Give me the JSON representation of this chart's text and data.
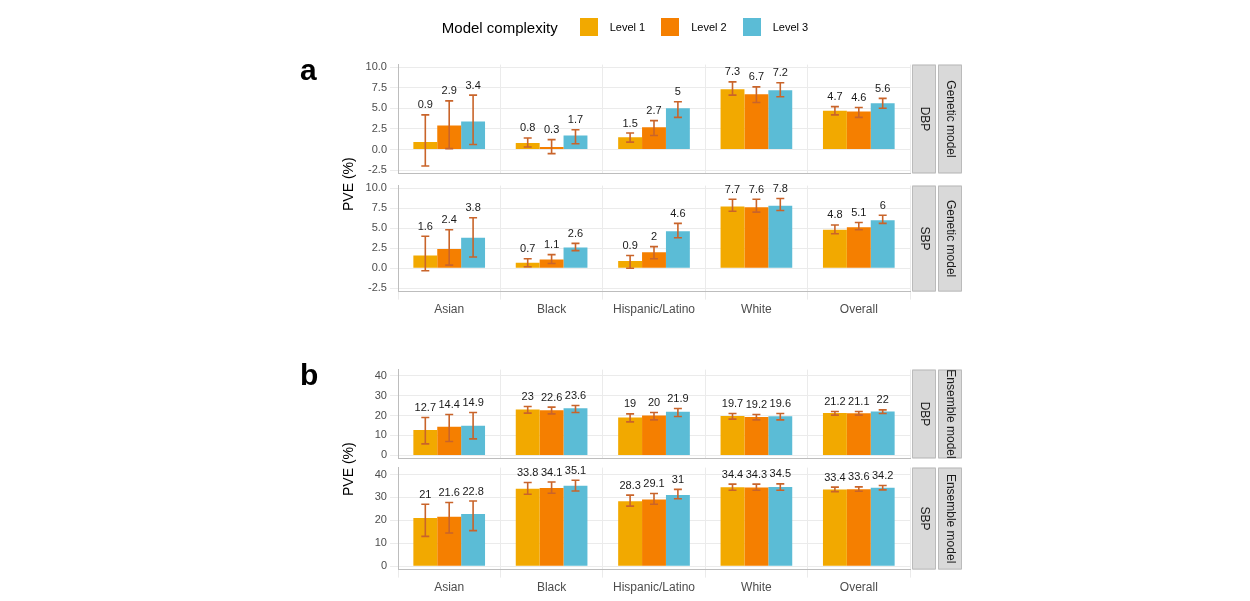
{
  "chart_data": [
    {
      "type": "bar",
      "title": "a",
      "annotations": [
        "DBP",
        "Genetic model"
      ],
      "ylabel": "PVE (%)",
      "legend_title": "Model complexity",
      "legend": "top",
      "categories": [
        "Asian",
        "Black",
        "Hispanic/Latino",
        "White",
        "Overall"
      ],
      "tick_labels": "y",
      "ylim": [
        -2.9,
        10.3
      ],
      "yticks": [
        -2.5,
        {
          "value": 0,
          "label": "0.0"
        },
        2.5,
        {
          "value": 5,
          "label": "5.0"
        },
        7.5,
        {
          "value": 10,
          "label": "10.0"
        }
      ],
      "grid": true,
      "data_labels": true,
      "series": [
        {
          "name": "Level 1",
          "color": "#f2a900",
          "values": [
            0.9,
            0.8,
            1.5,
            7.3,
            4.7
          ],
          "errors": [
            [
              -2.0,
              4.2
            ],
            [
              0.3,
              1.4
            ],
            [
              0.9,
              2.0
            ],
            [
              6.6,
              8.2
            ],
            [
              4.2,
              5.2
            ]
          ]
        },
        {
          "name": "Level 2",
          "color": "#f57f00",
          "values": [
            2.9,
            0.3,
            2.7,
            6.7,
            4.6
          ],
          "errors": [
            [
              0.1,
              5.9
            ],
            [
              -0.5,
              1.2
            ],
            [
              1.7,
              3.5
            ],
            [
              5.7,
              7.6
            ],
            [
              3.9,
              5.1
            ]
          ]
        },
        {
          "name": "Level 3",
          "color": "#5bbcd6",
          "values": [
            3.4,
            1.7,
            5,
            7.2,
            5.6
          ],
          "errors": [
            [
              0.6,
              6.6
            ],
            [
              0.7,
              2.4
            ],
            [
              3.9,
              5.8
            ],
            [
              6.4,
              8.1
            ],
            [
              5.0,
              6.2
            ]
          ]
        }
      ]
    },
    {
      "type": "bar",
      "annotations": [
        "SBP",
        "Genetic model"
      ],
      "categories": [
        "Asian",
        "Black",
        "Hispanic/Latino",
        "White",
        "Overall"
      ],
      "ylim": [
        -2.9,
        10.3
      ],
      "yticks": [
        -2.5,
        {
          "value": 0,
          "label": "0.0"
        },
        2.5,
        {
          "value": 5,
          "label": "5.0"
        },
        7.5,
        {
          "value": 10,
          "label": "10.0"
        }
      ],
      "grid": true,
      "data_labels": true,
      "series": [
        {
          "name": "Level 1",
          "color": "#f2a900",
          "values": [
            1.6,
            0.7,
            0.9,
            7.7,
            4.8
          ],
          "errors": [
            [
              -0.3,
              4.0
            ],
            [
              0.2,
              1.2
            ],
            [
              0.0,
              1.6
            ],
            [
              7.1,
              8.6
            ],
            [
              4.3,
              5.4
            ]
          ]
        },
        {
          "name": "Level 2",
          "color": "#f57f00",
          "values": [
            2.4,
            1.1,
            2,
            7.6,
            5.1
          ],
          "errors": [
            [
              0.4,
              4.8
            ],
            [
              0.6,
              1.7
            ],
            [
              1.2,
              2.7
            ],
            [
              7.0,
              8.6
            ],
            [
              4.8,
              5.7
            ]
          ]
        },
        {
          "name": "Level 3",
          "color": "#5bbcd6",
          "values": [
            3.8,
            2.6,
            4.6,
            7.8,
            6
          ],
          "errors": [
            [
              1.4,
              6.3
            ],
            [
              2.2,
              3.1
            ],
            [
              3.8,
              5.6
            ],
            [
              7.2,
              8.7
            ],
            [
              5.6,
              6.6
            ]
          ]
        }
      ]
    },
    {
      "type": "bar",
      "title": "b",
      "annotations": [
        "DBP",
        "Ensemble model"
      ],
      "ylabel": "PVE (%)",
      "categories": [
        "Asian",
        "Black",
        "Hispanic/Latino",
        "White",
        "Overall"
      ],
      "tick_labels": "y",
      "ylim": [
        -1.5,
        43
      ],
      "yticks": [
        0,
        10,
        20,
        30,
        40
      ],
      "grid": true,
      "data_labels": true,
      "series": [
        {
          "name": "Level 1",
          "color": "#f2a900",
          "values": [
            12.7,
            23,
            19,
            19.7,
            21.2
          ],
          "errors": [
            [
              5.8,
              19.0
            ],
            [
              21.2,
              24.5
            ],
            [
              16.8,
              20.8
            ],
            [
              18.2,
              21.0
            ],
            [
              20.2,
              22.0
            ]
          ]
        },
        {
          "name": "Level 2",
          "color": "#f57f00",
          "values": [
            14.4,
            22.6,
            20,
            19.2,
            21.1
          ],
          "errors": [
            [
              7.0,
              20.5
            ],
            [
              20.8,
              24.2
            ],
            [
              17.8,
              21.5
            ],
            [
              17.8,
              20.5
            ],
            [
              20.2,
              22.0
            ]
          ]
        },
        {
          "name": "Level 3",
          "color": "#5bbcd6",
          "values": [
            14.9,
            23.6,
            21.9,
            19.6,
            22
          ],
          "errors": [
            [
              8.3,
              21.5
            ],
            [
              21.5,
              25.0
            ],
            [
              19.5,
              23.5
            ],
            [
              17.8,
              21.0
            ],
            [
              21.0,
              22.8
            ]
          ]
        }
      ]
    },
    {
      "type": "bar",
      "annotations": [
        "SBP",
        "Ensemble model"
      ],
      "categories": [
        "Asian",
        "Black",
        "Hispanic/Latino",
        "White",
        "Overall"
      ],
      "ylim": [
        -1.5,
        43
      ],
      "yticks": [
        0,
        10,
        20,
        30,
        40
      ],
      "grid": true,
      "data_labels": true,
      "series": [
        {
          "name": "Level 1",
          "color": "#f2a900",
          "values": [
            21,
            33.8,
            28.3,
            34.4,
            33.4
          ],
          "errors": [
            [
              13.0,
              27.0
            ],
            [
              31.4,
              36.5
            ],
            [
              26.2,
              31.0
            ],
            [
              33.1,
              35.8
            ],
            [
              32.5,
              34.5
            ]
          ]
        },
        {
          "name": "Level 2",
          "color": "#f57f00",
          "values": [
            21.6,
            34.1,
            29.1,
            34.3,
            33.6
          ],
          "errors": [
            [
              14.5,
              27.8
            ],
            [
              31.8,
              36.7
            ],
            [
              27.0,
              31.7
            ],
            [
              33.1,
              35.8
            ],
            [
              32.7,
              34.6
            ]
          ]
        },
        {
          "name": "Level 3",
          "color": "#5bbcd6",
          "values": [
            22.8,
            35.1,
            31,
            34.5,
            34.2
          ],
          "errors": [
            [
              15.5,
              28.4
            ],
            [
              32.8,
              37.5
            ],
            [
              29.4,
              33.5
            ],
            [
              33.1,
              35.9
            ],
            [
              33.3,
              35.2
            ]
          ]
        }
      ]
    }
  ]
}
